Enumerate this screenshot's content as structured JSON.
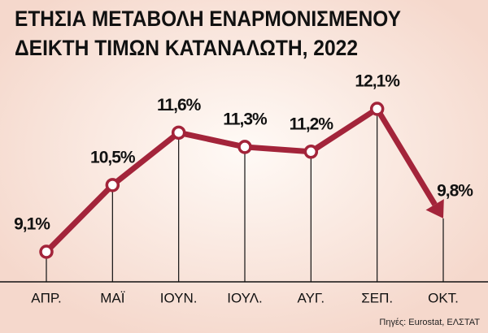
{
  "title_lines": [
    "ΕΤΗΣΙΑ ΜΕΤΑΒΟΛΗ ΕΝΑΡΜΟΝΙΣΜΕΝΟΥ",
    "ΔΕΙΚΤΗ ΤΙΜΩΝ ΚΑΤΑΝΑΛΩΤΗ, 2022"
  ],
  "chart_data": {
    "type": "line",
    "categories": [
      "ΑΠΡ.",
      "ΜΑΪ",
      "ΙΟΥΝ.",
      "ΙΟΥΛ.",
      "ΑΥΓ.",
      "ΣΕΠ.",
      "ΟΚΤ."
    ],
    "values": [
      9.1,
      10.5,
      11.6,
      11.3,
      11.2,
      12.1,
      9.8
    ],
    "value_labels": [
      "9,1%",
      "10,5%",
      "11,6%",
      "11,3%",
      "11,2%",
      "12,1%",
      "9,8%"
    ],
    "color": "#a3243a"
  },
  "source": "Πηγές: Eurostat, ΕΛΣΤΑΤ"
}
